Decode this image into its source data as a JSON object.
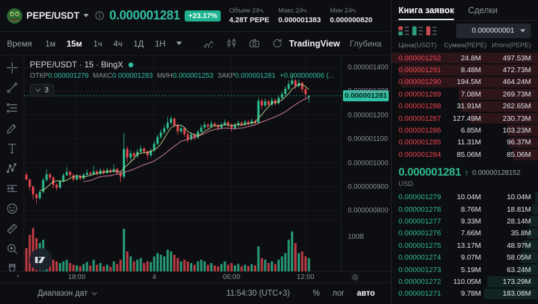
{
  "header": {
    "pair": "PEPE/USDT",
    "price": "0.000001281",
    "change": "+23.17%",
    "stats": [
      {
        "label": "Объем 24ч.",
        "value": "4.28T PEPE"
      },
      {
        "label": "Макс 24ч.",
        "value": "0.000001383"
      },
      {
        "label": "Мин 24ч.",
        "value": "0.000000820"
      }
    ]
  },
  "toolbar": {
    "time_label": "Время",
    "intervals": [
      "1м",
      "15м",
      "1ч",
      "4ч",
      "1Д",
      "1Н"
    ],
    "active_interval": "15м",
    "tradingview_label": "TradingView",
    "depth_label": "Глубина"
  },
  "chart": {
    "legend_title": "PEPE/USDT · 15 · BingX",
    "ohlc": [
      {
        "label": "ОТКР",
        "value": "0.000001276"
      },
      {
        "label": "МАКС",
        "value": "0.000001283"
      },
      {
        "label": "МИН",
        "value": "0.000001253"
      },
      {
        "label": "ЗАКР",
        "value": "0.000001281"
      }
    ],
    "change": "+0.000000006",
    "change_suffix": "(...",
    "collapse_count": "3",
    "axis_prices": [
      "0.000001400",
      "0.000001300",
      "0.000001200",
      "0.000001100",
      "0.000001000",
      "0.000000900",
      "0.000000800"
    ],
    "volume_axis_label": "100B",
    "price_tag": "0.000001281",
    "time_ticks": [
      "18:00",
      "4",
      "06:00",
      "12:00"
    ]
  },
  "chart_data": {
    "type": "candlestick",
    "symbol": "PEPE/USDT",
    "interval": "15m",
    "exchange": "BingX",
    "price_unit": "values are USDT * 1e-9",
    "y_axis": {
      "min": 800,
      "max": 1400,
      "tick_step": 100
    },
    "last_price": 1281,
    "up_color": "#2ebd8d",
    "down_color": "#e8464f",
    "ma": {
      "fast_period": 5,
      "slow_period": 18,
      "fast_color": "#b9cf8e",
      "slow_color": "#d9839f"
    },
    "x_tick_indices": [
      15,
      38,
      61,
      83
    ],
    "candles": [
      [
        950,
        960,
        925,
        930
      ],
      [
        930,
        935,
        885,
        900
      ],
      [
        900,
        905,
        848,
        868
      ],
      [
        868,
        874,
        830,
        852
      ],
      [
        852,
        885,
        846,
        878
      ],
      [
        878,
        938,
        874,
        928
      ],
      [
        928,
        972,
        922,
        952
      ],
      [
        952,
        958,
        928,
        938
      ],
      [
        938,
        944,
        894,
        908
      ],
      [
        908,
        914,
        884,
        896
      ],
      [
        896,
        930,
        892,
        922
      ],
      [
        922,
        956,
        918,
        948
      ],
      [
        948,
        982,
        944,
        962
      ],
      [
        962,
        968,
        940,
        948
      ],
      [
        948,
        954,
        922,
        930
      ],
      [
        930,
        952,
        926,
        944
      ],
      [
        944,
        950,
        928,
        934
      ],
      [
        934,
        958,
        930,
        950
      ],
      [
        950,
        972,
        946,
        958
      ],
      [
        958,
        964,
        944,
        952
      ],
      [
        952,
        988,
        948,
        964
      ],
      [
        964,
        970,
        946,
        954
      ],
      [
        954,
        976,
        950,
        968
      ],
      [
        968,
        974,
        950,
        958
      ],
      [
        958,
        980,
        954,
        970
      ],
      [
        970,
        976,
        954,
        962
      ],
      [
        962,
        994,
        958,
        974
      ],
      [
        974,
        980,
        950,
        958
      ],
      [
        958,
        964,
        918,
        942
      ],
      [
        942,
        1125,
        934,
        1058
      ],
      [
        1058,
        1068,
        1002,
        1022
      ],
      [
        1022,
        1052,
        1008,
        1040
      ],
      [
        1040,
        1048,
        1012,
        1028
      ],
      [
        1028,
        1058,
        1020,
        1046
      ],
      [
        1046,
        1072,
        1038,
        1060
      ],
      [
        1060,
        1066,
        1036,
        1048
      ],
      [
        1048,
        1054,
        1014,
        1032
      ],
      [
        1032,
        1060,
        1024,
        1052
      ],
      [
        1052,
        1092,
        1046,
        1080
      ],
      [
        1080,
        1118,
        1074,
        1108
      ],
      [
        1108,
        1140,
        1100,
        1128
      ],
      [
        1128,
        1158,
        1120,
        1145
      ],
      [
        1145,
        1192,
        1138,
        1168
      ],
      [
        1168,
        1196,
        1160,
        1185
      ],
      [
        1185,
        1190,
        1146,
        1158
      ],
      [
        1158,
        1164,
        1118,
        1132
      ],
      [
        1132,
        1154,
        1122,
        1145
      ],
      [
        1145,
        1150,
        1108,
        1120
      ],
      [
        1120,
        1126,
        1086,
        1100
      ],
      [
        1100,
        1128,
        1092,
        1118
      ],
      [
        1118,
        1124,
        1096,
        1106
      ],
      [
        1106,
        1138,
        1100,
        1130
      ],
      [
        1130,
        1160,
        1124,
        1148
      ],
      [
        1148,
        1172,
        1140,
        1160
      ],
      [
        1160,
        1166,
        1142,
        1152
      ],
      [
        1152,
        1176,
        1146,
        1164
      ],
      [
        1164,
        1170,
        1148,
        1156
      ],
      [
        1156,
        1162,
        1136,
        1148
      ],
      [
        1148,
        1168,
        1140,
        1160
      ],
      [
        1160,
        1182,
        1154,
        1170
      ],
      [
        1170,
        1176,
        1148,
        1158
      ],
      [
        1158,
        1164,
        1130,
        1146
      ],
      [
        1146,
        1166,
        1138,
        1158
      ],
      [
        1158,
        1176,
        1150,
        1168
      ],
      [
        1168,
        1174,
        1152,
        1160
      ],
      [
        1160,
        1180,
        1154,
        1172
      ],
      [
        1172,
        1178,
        1156,
        1164
      ],
      [
        1164,
        1184,
        1158,
        1176
      ],
      [
        1176,
        1182,
        1160,
        1168
      ],
      [
        1168,
        1272,
        1162,
        1260
      ],
      [
        1260,
        1268,
        1224,
        1240
      ],
      [
        1240,
        1270,
        1232,
        1258
      ],
      [
        1258,
        1264,
        1234,
        1244
      ],
      [
        1244,
        1274,
        1238,
        1262
      ],
      [
        1262,
        1268,
        1240,
        1250
      ],
      [
        1250,
        1282,
        1244,
        1272
      ],
      [
        1272,
        1298,
        1266,
        1288
      ],
      [
        1288,
        1322,
        1282,
        1310
      ],
      [
        1310,
        1345,
        1304,
        1330
      ],
      [
        1330,
        1368,
        1324,
        1345
      ],
      [
        1345,
        1352,
        1310,
        1322
      ],
      [
        1322,
        1348,
        1316,
        1335
      ],
      [
        1335,
        1340,
        1295,
        1308
      ],
      [
        1308,
        1315,
        1270,
        1288
      ],
      [
        1276,
        1283,
        1253,
        1281
      ]
    ],
    "volumes_b": [
      70,
      110,
      130,
      100,
      85,
      95,
      60,
      40,
      35,
      30,
      25,
      30,
      35,
      25,
      20,
      18,
      15,
      22,
      28,
      18,
      35,
      20,
      25,
      15,
      20,
      14,
      30,
      22,
      35,
      128,
      60,
      45,
      30,
      35,
      40,
      25,
      30,
      28,
      45,
      55,
      50,
      45,
      65,
      60,
      50,
      40,
      30,
      35,
      30,
      25,
      20,
      30,
      35,
      30,
      20,
      25,
      18,
      15,
      22,
      30,
      20,
      25,
      18,
      22,
      15,
      20,
      16,
      22,
      18,
      75,
      40,
      35,
      25,
      30,
      22,
      35,
      45,
      55,
      95,
      120,
      85,
      55,
      60,
      45,
      40
    ]
  },
  "bottom_bar": {
    "date_range_label": "Диапазон дат",
    "clock": "11:54:30 (UTC+3)",
    "percent_label": "%",
    "log_label": "лог",
    "auto_label": "авто"
  },
  "orderbook": {
    "tabs": [
      "Книга заявок",
      "Сделки"
    ],
    "active_tab": "Книга заявок",
    "precision": "0.000000001",
    "columns": [
      "Цена(USDT)",
      "Сумма(PEPE)",
      "Итого(PEPE)"
    ],
    "asks": [
      {
        "price": "0.000001292",
        "amount": "24.8M",
        "total": "497.53M"
      },
      {
        "price": "0.000001291",
        "amount": "8.48M",
        "total": "472.73M"
      },
      {
        "price": "0.000001290",
        "amount": "194.5M",
        "total": "464.24M"
      },
      {
        "price": "0.000001289",
        "amount": "7.08M",
        "total": "269.73M"
      },
      {
        "price": "0.000001288",
        "amount": "31.91M",
        "total": "262.65M"
      },
      {
        "price": "0.000001287",
        "amount": "127.49M",
        "total": "230.73M"
      },
      {
        "price": "0.000001286",
        "amount": "6.85M",
        "total": "103.23M"
      },
      {
        "price": "0.000001285",
        "amount": "11.31M",
        "total": "96.37M"
      },
      {
        "price": "0.000001284",
        "amount": "85.06M",
        "total": "85.06M"
      }
    ],
    "last_price": "0.000001281",
    "last_price_usd": "0.00000128152",
    "currency_label": "USD",
    "bids": [
      {
        "price": "0.000001279",
        "amount": "10.04M",
        "total": "10.04M"
      },
      {
        "price": "0.000001278",
        "amount": "8.76M",
        "total": "18.81M"
      },
      {
        "price": "0.000001277",
        "amount": "9.33M",
        "total": "28.14M"
      },
      {
        "price": "0.000001276",
        "amount": "7.66M",
        "total": "35.8M"
      },
      {
        "price": "0.000001275",
        "amount": "13.17M",
        "total": "48.97M"
      },
      {
        "price": "0.000001274",
        "amount": "9.07M",
        "total": "58.05M"
      },
      {
        "price": "0.000001273",
        "amount": "5.19M",
        "total": "63.24M"
      },
      {
        "price": "0.000001272",
        "amount": "110.05M",
        "total": "173.29M"
      },
      {
        "price": "0.000001271",
        "amount": "9.78M",
        "total": "183.08M"
      }
    ]
  }
}
